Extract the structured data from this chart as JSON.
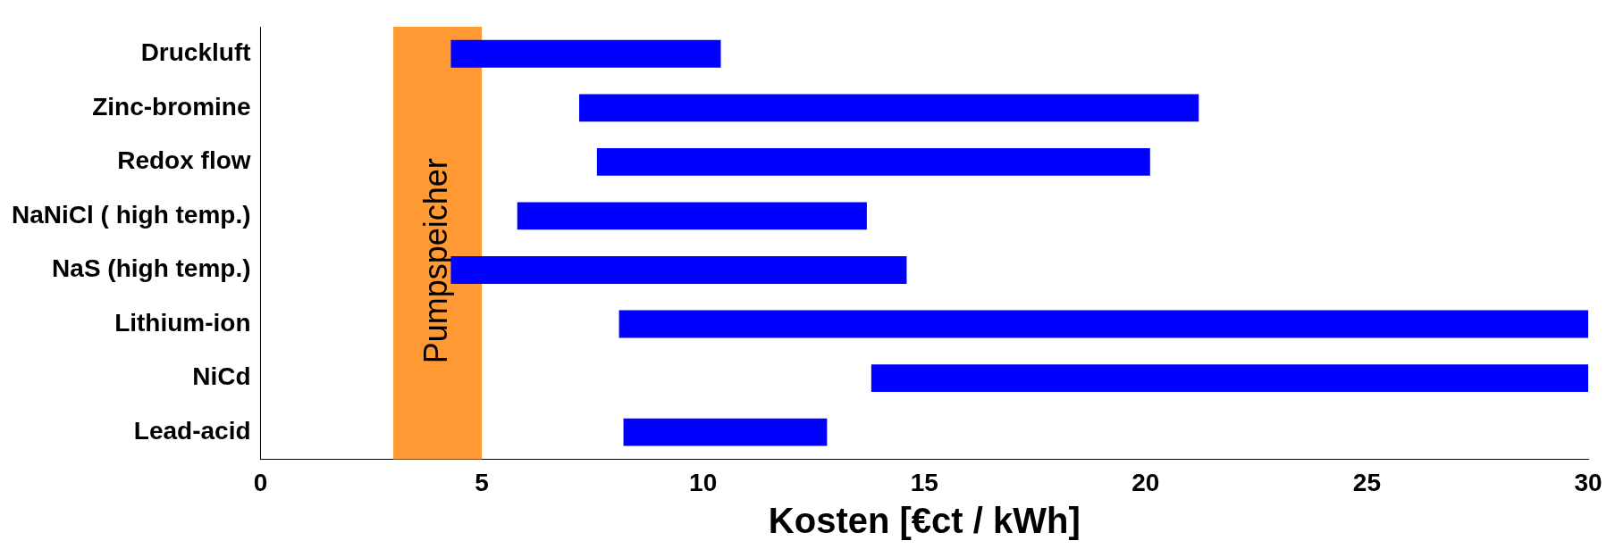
{
  "chart_data": {
    "type": "bar",
    "orientation": "horizontal",
    "xlabel": "Kosten [€ct / kWh]",
    "categories": [
      "Druckluft",
      "Zinc-bromine",
      "Redox flow",
      "NaNiCl ( high temp.)",
      "NaS (high temp.)",
      "Lithium-ion",
      "NiCd",
      "Lead-acid"
    ],
    "base": [
      4.3,
      7.2,
      7.6,
      5.8,
      4.3,
      8.1,
      13.8,
      8.2
    ],
    "values": [
      6.1,
      14.0,
      12.5,
      7.9,
      10.3,
      21.9,
      16.2,
      4.6
    ],
    "color": "#0000ff",
    "xlim": [
      0,
      30
    ],
    "xticks": [
      0,
      5,
      10,
      15,
      20,
      25,
      30
    ],
    "bands": [
      {
        "axis": "x",
        "from": 3,
        "to": 5,
        "label": "Pumpspeicher",
        "color": "#ff9933"
      }
    ],
    "grid": false,
    "legend": false
  }
}
